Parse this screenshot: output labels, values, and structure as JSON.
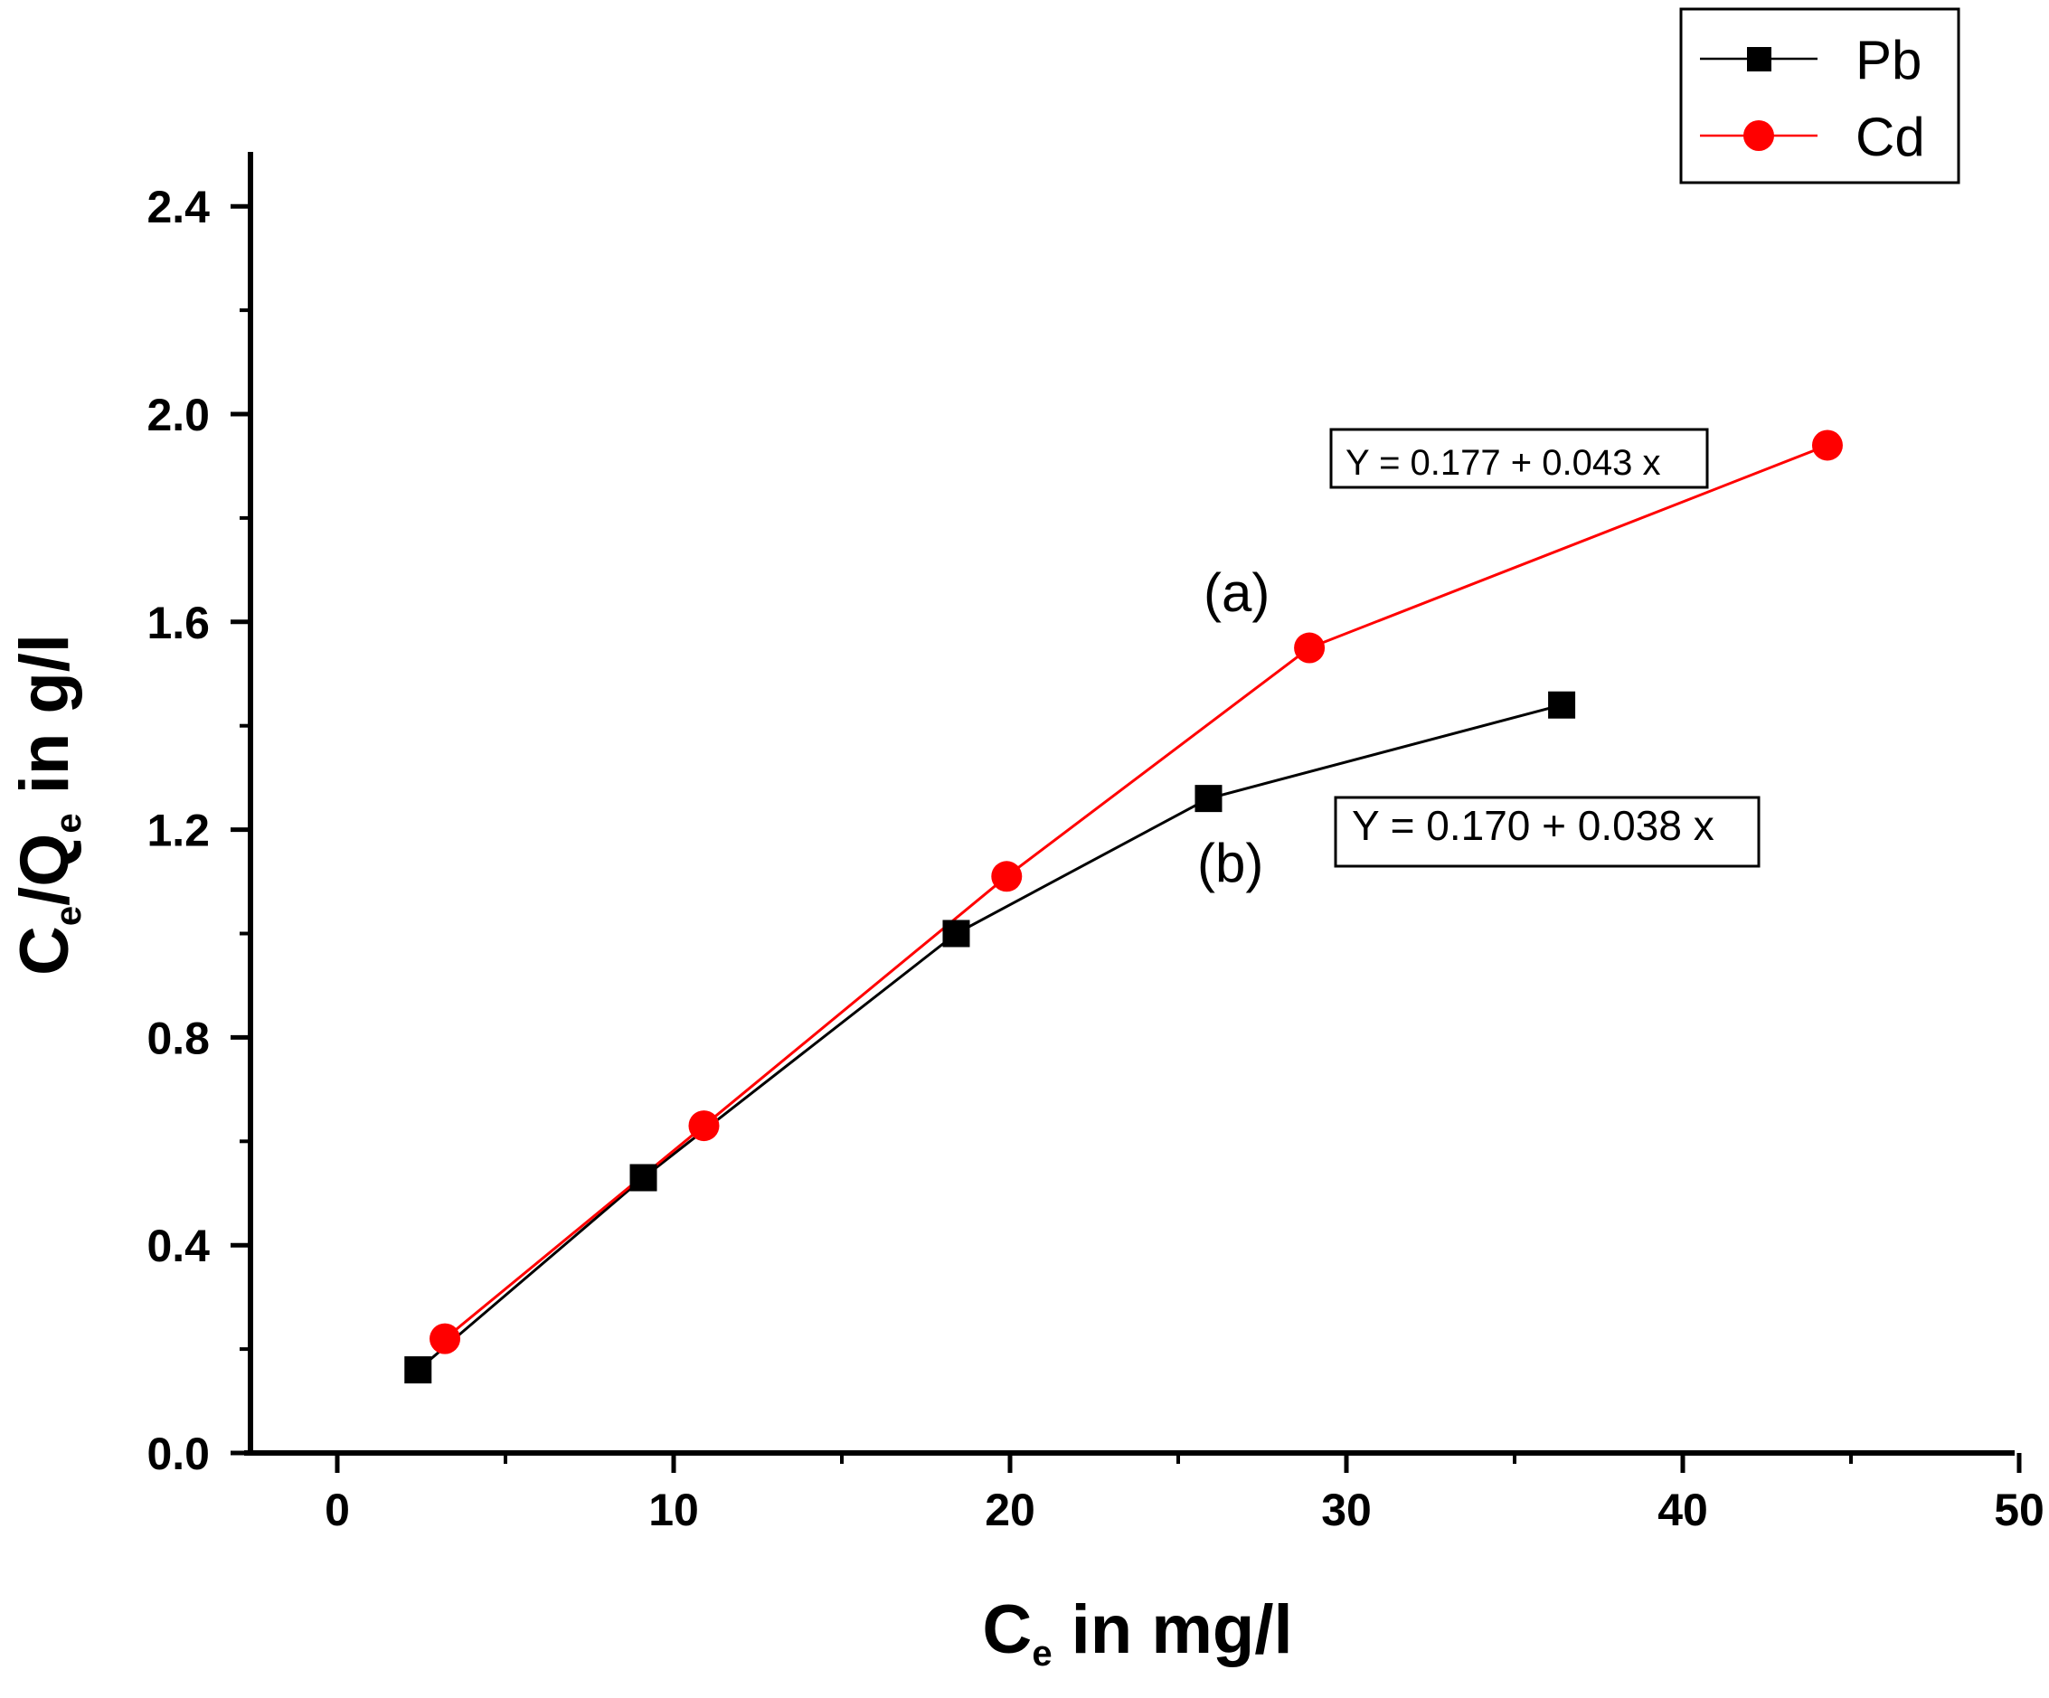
{
  "chart_data": {
    "type": "line",
    "title": "",
    "xlabel": {
      "main": "C",
      "sub": "e",
      "rest": " in mg/l"
    },
    "ylabel": {
      "c": "C",
      "sub1": "e",
      "slash": "/Q",
      "sub2": "e",
      "rest": " in g/l"
    },
    "xlim": [
      -2.5,
      50
    ],
    "ylim": [
      0,
      2.5
    ],
    "x_ticks": [
      "0",
      "10",
      "20",
      "30",
      "40",
      "50"
    ],
    "y_ticks": [
      "0.0",
      "0.4",
      "0.8",
      "1.2",
      "1.6",
      "2.0",
      "2.4"
    ],
    "legend_position": "top-right",
    "series": [
      {
        "name": "Pb",
        "color": "#000000",
        "marker": "square",
        "x": [
          2.4,
          9.1,
          18.4,
          25.9,
          36.4
        ],
        "y": [
          0.16,
          0.53,
          1.0,
          1.26,
          1.44
        ]
      },
      {
        "name": "Cd",
        "color": "#ff0000",
        "marker": "circle",
        "x": [
          3.2,
          10.9,
          19.9,
          28.9,
          44.3
        ],
        "y": [
          0.22,
          0.63,
          1.11,
          1.55,
          1.94
        ]
      }
    ],
    "annotations": {
      "label_a": "(a)",
      "label_b": "(b)",
      "eq_cd": "Y = 0.177 + 0.043 x",
      "eq_pb": "Y = 0.170 + 0.038 x"
    }
  }
}
